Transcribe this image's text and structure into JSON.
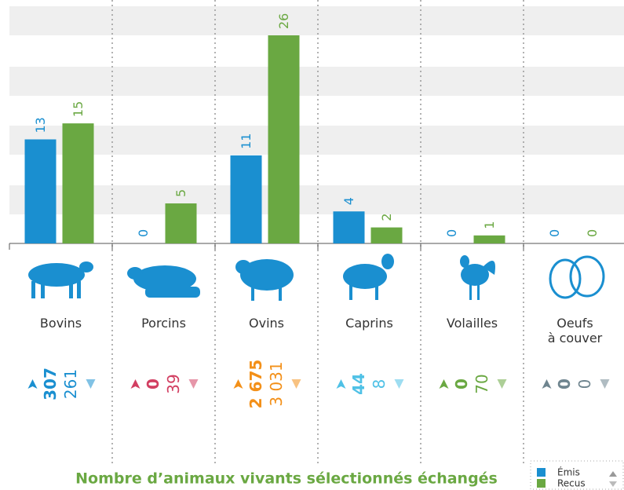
{
  "chart_data": {
    "type": "bar",
    "title": "Nombre d’animaux vivants sélectionnés échangés",
    "categories": [
      "Bovins",
      "Porcins",
      "Ovins",
      "Caprins",
      "Volailles",
      "Oeufs\nà couver"
    ],
    "series": [
      {
        "name": "Émis",
        "color": "#1a8fd0",
        "values": [
          13,
          0,
          11,
          4,
          0,
          0
        ]
      },
      {
        "name": "Recus",
        "color": "#6aa842",
        "values": [
          15,
          5,
          26,
          2,
          1,
          0
        ]
      }
    ],
    "category_colors": [
      "#1a8fd0",
      "#d23f62",
      "#f39019",
      "#4fc1e6",
      "#6aa842",
      "#6f858f"
    ],
    "totals": [
      {
        "values": [
          307,
          0,
          2675,
          44,
          0,
          0
        ],
        "value_labels": [
          "307",
          "0",
          "2 675",
          "44",
          "0",
          "0"
        ]
      },
      {
        "values": [
          261,
          39,
          3031,
          8,
          70,
          0
        ],
        "value_labels": [
          "261",
          "39",
          "3 031",
          "8",
          "70",
          "0"
        ]
      }
    ]
  }
}
